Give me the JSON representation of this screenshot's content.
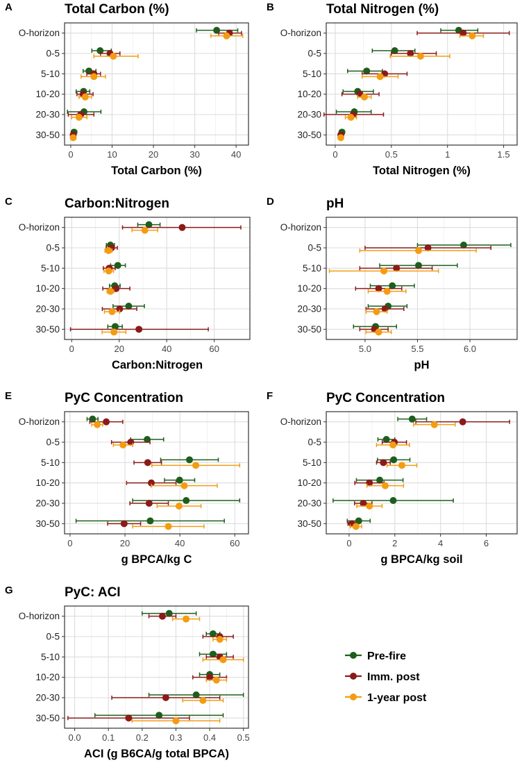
{
  "colors": {
    "Pre-fire": "#1d5e1d",
    "Imm. post": "#8b1a1a",
    "1-year post": "#f39c12"
  },
  "legend": {
    "items": [
      "Pre-fire",
      "Imm. post",
      "1-year post"
    ]
  },
  "chart_data": [
    {
      "type": "scatter",
      "letter": "A",
      "title": "Total Carbon (%)",
      "xlabel": "Total Carbon (%)",
      "xlim": [
        -1.5,
        43
      ],
      "xticks": [
        0,
        10,
        20,
        30,
        40
      ],
      "categories": [
        "O-horizon",
        "0-5",
        "5-10",
        "10-20",
        "20-30",
        "30-50"
      ],
      "series": [
        {
          "name": "Pre-fire",
          "values": [
            35.3,
            7.1,
            4.4,
            3.1,
            3.2,
            0.8
          ],
          "ci": [
            [
              30.4,
              40.4
            ],
            [
              5.1,
              9.8
            ],
            [
              3.0,
              6.1
            ],
            [
              1.3,
              4.6
            ],
            [
              -0.8,
              7.3
            ],
            [
              0.3,
              1.2
            ]
          ]
        },
        {
          "name": "Imm. post",
          "values": [
            38.4,
            9.5,
            5.6,
            3.0,
            2.4,
            0.6
          ],
          "ci": [
            [
              35.8,
              41.3
            ],
            [
              7.2,
              11.9
            ],
            [
              3.9,
              7.2
            ],
            [
              1.5,
              5.4
            ],
            [
              -0.6,
              5.6
            ],
            [
              0.2,
              1.0
            ]
          ]
        },
        {
          "name": "1-year post",
          "values": [
            37.7,
            10.3,
            5.6,
            3.5,
            2.0,
            0.6
          ],
          "ci": [
            [
              33.9,
              41.6
            ],
            [
              5.6,
              16.3
            ],
            [
              2.5,
              8.4
            ],
            [
              2.0,
              5.0
            ],
            [
              0.2,
              3.9
            ],
            [
              0.3,
              0.9
            ]
          ]
        }
      ]
    },
    {
      "type": "scatter",
      "letter": "B",
      "title": "Total Nitrogen (%)",
      "xlabel": "Total Nitrogen (%)",
      "xlim": [
        -0.08,
        1.62
      ],
      "xticks": [
        0.0,
        0.5,
        1.0,
        1.5
      ],
      "categories": [
        "O-horizon",
        "0-5",
        "5-10",
        "10-20",
        "20-30",
        "30-50"
      ],
      "series": [
        {
          "name": "Pre-fire",
          "values": [
            1.1,
            0.53,
            0.28,
            0.2,
            0.17,
            0.06
          ],
          "ci": [
            [
              0.94,
              1.27
            ],
            [
              0.33,
              0.71
            ],
            [
              0.11,
              0.42
            ],
            [
              0.07,
              0.34
            ],
            [
              0.01,
              0.32
            ],
            [
              0.04,
              0.08
            ]
          ]
        },
        {
          "name": "Imm. post",
          "values": [
            1.14,
            0.67,
            0.44,
            0.22,
            0.16,
            0.05
          ],
          "ci": [
            [
              0.73,
              1.55
            ],
            [
              0.5,
              0.9
            ],
            [
              0.24,
              0.64
            ],
            [
              0.06,
              0.39
            ],
            [
              -0.1,
              0.43
            ],
            [
              0.03,
              0.06
            ]
          ]
        },
        {
          "name": "1-year post",
          "values": [
            1.22,
            0.76,
            0.4,
            0.26,
            0.14,
            0.05
          ],
          "ci": [
            [
              1.11,
              1.32
            ],
            [
              0.49,
              1.02
            ],
            [
              0.24,
              0.56
            ],
            [
              0.2,
              0.32
            ],
            [
              0.09,
              0.19
            ],
            [
              0.03,
              0.06
            ]
          ]
        }
      ]
    },
    {
      "type": "scatter",
      "letter": "C",
      "title": "Carbon:Nitrogen",
      "xlabel": "Carbon:Nitrogen",
      "xlim": [
        -3,
        75
      ],
      "xticks": [
        0,
        20,
        40,
        60
      ],
      "categories": [
        "O-horizon",
        "0-5",
        "5-10",
        "10-20",
        "20-30",
        "30-50"
      ],
      "series": [
        {
          "name": "Pre-fire",
          "values": [
            32.5,
            16.3,
            19.4,
            18.1,
            24.0,
            18.3
          ],
          "ci": [
            [
              27.8,
              37.2
            ],
            [
              14.6,
              18.0
            ],
            [
              16.4,
              22.6
            ],
            [
              15.9,
              20.4
            ],
            [
              17.4,
              30.6
            ],
            [
              15.2,
              21.3
            ]
          ]
        },
        {
          "name": "Imm. post",
          "values": [
            46.5,
            16.8,
            15.8,
            18.7,
            20.2,
            28.3
          ],
          "ci": [
            [
              21.4,
              71.2
            ],
            [
              14.5,
              19.2
            ],
            [
              13.3,
              18.3
            ],
            [
              13.1,
              24.5
            ],
            [
              12.9,
              27.4
            ],
            [
              -0.5,
              57.5
            ]
          ]
        },
        {
          "name": "1-year post",
          "values": [
            30.8,
            15.5,
            15.6,
            16.3,
            17.0,
            17.8
          ],
          "ci": [
            [
              25.4,
              36.2
            ],
            [
              14.0,
              17.0
            ],
            [
              13.6,
              17.6
            ],
            [
              14.9,
              17.7
            ],
            [
              13.8,
              20.2
            ],
            [
              12.8,
              22.8
            ]
          ]
        }
      ]
    },
    {
      "type": "scatter",
      "letter": "D",
      "title": "pH",
      "xlabel": "pH",
      "xlim": [
        4.63,
        6.45
      ],
      "xticks": [
        5.0,
        5.5,
        6.0
      ],
      "tick_decimals": 1,
      "categories": [
        "O-horizon",
        "0-5",
        "5-10",
        "10-20",
        "20-30",
        "30-50"
      ],
      "series": [
        {
          "name": "Pre-fire",
          "values": [
            null,
            5.94,
            5.51,
            5.26,
            5.22,
            5.1
          ],
          "ci": [
            null,
            [
              5.5,
              6.39
            ],
            [
              5.14,
              5.88
            ],
            [
              5.05,
              5.47
            ],
            [
              5.03,
              5.4
            ],
            [
              4.89,
              5.3
            ]
          ]
        },
        {
          "name": "Imm. post",
          "values": [
            null,
            5.6,
            5.3,
            5.13,
            5.19,
            5.09
          ],
          "ci": [
            null,
            [
              5.0,
              6.2
            ],
            [
              4.95,
              5.64
            ],
            [
              4.91,
              5.35
            ],
            [
              5.01,
              5.37
            ],
            [
              4.95,
              5.22
            ]
          ]
        },
        {
          "name": "1-year post",
          "values": [
            null,
            5.51,
            5.18,
            5.21,
            5.11,
            5.13
          ],
          "ci": [
            null,
            [
              4.95,
              6.06
            ],
            [
              4.66,
              5.7
            ],
            [
              5.03,
              5.39
            ],
            [
              5.01,
              5.21
            ],
            [
              5.01,
              5.25
            ]
          ]
        }
      ]
    },
    {
      "type": "scatter",
      "letter": "E",
      "title": "PyC Concentration",
      "xlabel": "g BPCA/kg C",
      "xlim": [
        -2,
        65
      ],
      "xticks": [
        0,
        20,
        40,
        60
      ],
      "categories": [
        "O-horizon",
        "0-5",
        "5-10",
        "10-20",
        "20-30",
        "30-50"
      ],
      "series": [
        {
          "name": "Pre-fire",
          "values": [
            8.2,
            28.1,
            43.5,
            39.9,
            42.3,
            29.2
          ],
          "ci": [
            [
              6.2,
              10.2
            ],
            [
              22.1,
              34.1
            ],
            [
              33.0,
              54.0
            ],
            [
              34.4,
              45.4
            ],
            [
              22.8,
              61.8
            ],
            [
              2.2,
              56.2
            ]
          ]
        },
        {
          "name": "Imm. post",
          "values": [
            13.2,
            22.1,
            28.3,
            29.6,
            28.8,
            19.7
          ],
          "ci": [
            [
              7.2,
              19.2
            ],
            [
              15.1,
              29.1
            ],
            [
              23.3,
              33.3
            ],
            [
              20.6,
              38.6
            ],
            [
              21.8,
              35.8
            ],
            [
              13.7,
              25.7
            ]
          ]
        },
        {
          "name": "1-year post",
          "values": [
            9.9,
            19.3,
            45.8,
            41.6,
            39.7,
            35.8
          ],
          "ci": [
            [
              7.9,
              11.9
            ],
            [
              15.8,
              22.8
            ],
            [
              29.8,
              61.8
            ],
            [
              29.6,
              53.6
            ],
            [
              31.7,
              47.7
            ],
            [
              22.8,
              48.8
            ]
          ]
        }
      ]
    },
    {
      "type": "scatter",
      "letter": "F",
      "title": "PyC Concentration",
      "xlabel": "g BPCA/kg soil",
      "xlim": [
        -1.0,
        7.35
      ],
      "xticks": [
        0,
        2,
        4,
        6
      ],
      "categories": [
        "O-horizon",
        "0-5",
        "5-10",
        "10-20",
        "20-30",
        "30-50"
      ],
      "series": [
        {
          "name": "Pre-fire",
          "values": [
            2.76,
            1.63,
            1.95,
            1.34,
            1.93,
            0.42
          ],
          "ci": [
            [
              2.13,
              3.39
            ],
            [
              1.26,
              2.0
            ],
            [
              1.24,
              2.66
            ],
            [
              0.32,
              2.36
            ],
            [
              -0.7,
              4.56
            ],
            [
              -0.08,
              0.92
            ]
          ]
        },
        {
          "name": "Imm. post",
          "values": [
            4.97,
            1.98,
            1.5,
            0.89,
            0.62,
            0.12
          ],
          "ci": [
            [
              2.92,
              7.02
            ],
            [
              1.45,
              2.51
            ],
            [
              1.2,
              1.8
            ],
            [
              0.25,
              1.53
            ],
            [
              0.24,
              1.0
            ],
            [
              -0.05,
              0.29
            ]
          ]
        },
        {
          "name": "1-year post",
          "values": [
            3.73,
            1.92,
            2.31,
            1.58,
            0.89,
            0.3
          ],
          "ci": [
            [
              2.82,
              4.64
            ],
            [
              1.2,
              2.64
            ],
            [
              1.66,
              2.96
            ],
            [
              0.78,
              2.38
            ],
            [
              0.34,
              1.44
            ],
            [
              0.05,
              0.55
            ]
          ]
        }
      ]
    },
    {
      "type": "scatter",
      "letter": "G",
      "title": "PyC: ACI",
      "xlabel": "ACI (g B6CA/g total BPCA)",
      "xlim": [
        -0.03,
        0.515
      ],
      "xticks": [
        0.0,
        0.1,
        0.2,
        0.3,
        0.4,
        0.5
      ],
      "tick_decimals": 1,
      "categories": [
        "O-horizon",
        "0-5",
        "5-10",
        "10-20",
        "20-30",
        "30-50"
      ],
      "series": [
        {
          "name": "Pre-fire",
          "values": [
            0.28,
            0.41,
            0.41,
            0.4,
            0.36,
            0.25
          ],
          "ci": [
            [
              0.2,
              0.36
            ],
            [
              0.39,
              0.43
            ],
            [
              0.37,
              0.45
            ],
            [
              0.37,
              0.43
            ],
            [
              0.22,
              0.5
            ],
            [
              0.06,
              0.44
            ]
          ]
        },
        {
          "name": "Imm. post",
          "values": [
            0.26,
            0.43,
            0.43,
            0.4,
            0.27,
            0.16
          ],
          "ci": [
            [
              0.22,
              0.3
            ],
            [
              0.38,
              0.47
            ],
            [
              0.39,
              0.47
            ],
            [
              0.35,
              0.45
            ],
            [
              0.11,
              0.43
            ],
            [
              -0.02,
              0.34
            ]
          ]
        },
        {
          "name": "1-year post",
          "values": [
            0.33,
            0.43,
            0.44,
            0.42,
            0.38,
            0.3
          ],
          "ci": [
            [
              0.29,
              0.37
            ],
            [
              0.41,
              0.45
            ],
            [
              0.38,
              0.5
            ],
            [
              0.39,
              0.45
            ],
            [
              0.32,
              0.44
            ],
            [
              0.17,
              0.43
            ]
          ]
        }
      ]
    }
  ]
}
